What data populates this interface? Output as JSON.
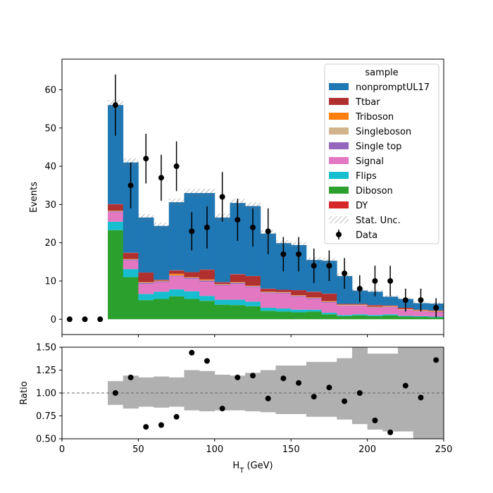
{
  "chart_data": [
    {
      "type": "bar",
      "stacked": true,
      "ylabel": "Events",
      "ylim": [
        -4,
        68
      ],
      "yticks": [
        0,
        10,
        20,
        30,
        40,
        50,
        60
      ],
      "xlim": [
        0,
        250
      ],
      "bin_edges": [
        30,
        40,
        50,
        60,
        70,
        80,
        90,
        100,
        110,
        120,
        130,
        140,
        150,
        160,
        170,
        180,
        190,
        200,
        210,
        220,
        230,
        240,
        250
      ],
      "legend": {
        "title": "sample",
        "placement": "top-right"
      },
      "series": [
        {
          "name": "Diboson",
          "color": "#2ca02c",
          "values": [
            23.3,
            11.0,
            5.0,
            5.3,
            6.0,
            5.3,
            4.8,
            3.8,
            3.7,
            3.4,
            2.2,
            2.0,
            1.8,
            2.0,
            1.3,
            0.8,
            1.0,
            0.8,
            1.0,
            0.7,
            0.6,
            0.5
          ]
        },
        {
          "name": "Flips",
          "color": "#17becf",
          "values": [
            2.2,
            2.1,
            1.6,
            1.9,
            1.8,
            2.0,
            1.3,
            1.3,
            1.4,
            1.2,
            0.8,
            0.8,
            0.7,
            0.5,
            0.4,
            0.3,
            0.3,
            0.3,
            0.3,
            0.2,
            0.2,
            0.2
          ]
        },
        {
          "name": "Signal",
          "color": "#e377c2",
          "values": [
            2.5,
            2.3,
            2.6,
            2.5,
            3.4,
            3.2,
            3.7,
            3.7,
            4.1,
            3.8,
            3.8,
            3.9,
            3.4,
            2.8,
            2.6,
            2.4,
            2.2,
            1.9,
            1.8,
            1.5,
            1.2,
            1.1
          ]
        },
        {
          "name": "Single top",
          "color": "#9467bd",
          "values": [
            0.2,
            0.2,
            0.3,
            0.2,
            0.2,
            0.3,
            0.3,
            0.2,
            0.3,
            0.2,
            0.2,
            0.2,
            0.2,
            0.2,
            0.2,
            0.1,
            0.1,
            0.1,
            0.1,
            0.1,
            0.1,
            0.1
          ]
        },
        {
          "name": "Singleboson",
          "color": "#d2b48c",
          "values": [
            0.1,
            0.1,
            0.1,
            0.1,
            0.1,
            0.1,
            0.1,
            0.1,
            0.1,
            0.1,
            0.1,
            0.1,
            0.1,
            0.1,
            0.1,
            0.1,
            0.1,
            0.1,
            0.1,
            0.1,
            0.1,
            0.1
          ]
        },
        {
          "name": "Triboson",
          "color": "#ff7f0e",
          "values": [
            0.1,
            0.1,
            0.1,
            0.1,
            0.4,
            0.1,
            0.2,
            0.1,
            0.1,
            0.1,
            0.1,
            0.1,
            0.1,
            0.1,
            0.1,
            0.1,
            0.1,
            0.1,
            0.1,
            0.1,
            0.1,
            0.1
          ]
        },
        {
          "name": "Ttbar",
          "color": "#b03030",
          "values": [
            1.6,
            1.5,
            2.4,
            0.1,
            0.8,
            1.2,
            2.5,
            0.4,
            2.0,
            2.4,
            0.7,
            0.5,
            1.2,
            1.4,
            1.9,
            0.1,
            0.1,
            0.3,
            0.1,
            0.2,
            0.1,
            0.1
          ]
        },
        {
          "name": "DY",
          "color": "#d62728",
          "values": [
            0.1,
            0.1,
            0.1,
            0.1,
            0.1,
            0.1,
            0.1,
            0.1,
            0.1,
            0.1,
            0.1,
            0.1,
            0.1,
            0.1,
            0.1,
            0.1,
            0.1,
            0.1,
            0.1,
            0.1,
            0.1,
            0.1
          ]
        },
        {
          "name": "nonpromptUL17",
          "color": "#1f77b4",
          "values": [
            25.9,
            23.6,
            14.4,
            14.1,
            17.8,
            20.7,
            20.0,
            16.9,
            18.6,
            18.3,
            14.4,
            12.2,
            11.8,
            8.3,
            8.6,
            7.3,
            3.5,
            3.5,
            2.3,
            2.3,
            1.7,
            1.8
          ]
        }
      ],
      "stat_unc": {
        "name": "Stat. Unc.",
        "half_width": [
          1.3,
          1.1,
          0.9,
          0.9,
          1.0,
          1.1,
          1.1,
          1.0,
          1.1,
          1.0,
          0.9,
          0.8,
          0.8,
          0.7,
          0.7,
          0.6,
          0.5,
          0.5,
          0.4,
          0.4,
          0.4,
          0.4
        ]
      },
      "data": {
        "name": "Data",
        "x": [
          5,
          15,
          25,
          35,
          45,
          55,
          65,
          75,
          85,
          95,
          105,
          115,
          125,
          135,
          145,
          155,
          165,
          175,
          185,
          195,
          205,
          215,
          225,
          235,
          245
        ],
        "y": [
          0,
          0,
          0,
          56,
          35,
          42,
          37,
          40,
          23,
          24,
          32,
          26,
          24,
          23,
          17,
          17,
          14,
          14,
          12,
          8,
          10,
          10,
          5,
          5,
          3
        ],
        "err": [
          0,
          0,
          0,
          8,
          6,
          6.5,
          6,
          6.5,
          5,
          5.5,
          6.5,
          5.5,
          5,
          6,
          4.5,
          4.5,
          4.5,
          4,
          4,
          3.5,
          4,
          4,
          3,
          3,
          2.5
        ]
      },
      "legend_order": [
        "nonpromptUL17",
        "Ttbar",
        "Triboson",
        "Singleboson",
        "Single top",
        "Signal",
        "Flips",
        "Diboson",
        "DY",
        "Stat. Unc.",
        "Data"
      ]
    },
    {
      "type": "scatter",
      "xlabel": "H_T (GeV)",
      "ylabel": "Ratio",
      "xlim": [
        0,
        250
      ],
      "ylim": [
        0.5,
        1.5
      ],
      "xticks": [
        0,
        50,
        100,
        150,
        200,
        250
      ],
      "yticks": [
        0.5,
        0.75,
        1.0,
        1.25,
        1.5
      ],
      "ytick_labels": [
        "0.50",
        "0.75",
        "1.00",
        "1.25",
        "1.50"
      ],
      "reference_line": 1.0,
      "unc_band": {
        "bin_edges": [
          30,
          40,
          50,
          60,
          70,
          80,
          90,
          100,
          110,
          120,
          130,
          140,
          150,
          160,
          170,
          180,
          190,
          200,
          210,
          220,
          230,
          240,
          250
        ],
        "lo": [
          0.87,
          0.83,
          0.85,
          0.84,
          0.85,
          0.81,
          0.8,
          0.81,
          0.81,
          0.8,
          0.79,
          0.77,
          0.77,
          0.74,
          0.74,
          0.71,
          0.66,
          0.6,
          0.58,
          0.58,
          0.45,
          0.45
        ],
        "hi": [
          1.13,
          1.19,
          1.17,
          1.18,
          1.17,
          1.25,
          1.24,
          1.2,
          1.19,
          1.22,
          1.25,
          1.3,
          1.3,
          1.34,
          1.34,
          1.38,
          1.55,
          1.43,
          1.43,
          1.55,
          1.55,
          1.55
        ]
      },
      "points": {
        "x": [
          35,
          45,
          55,
          65,
          75,
          85,
          95,
          105,
          115,
          125,
          135,
          145,
          155,
          165,
          175,
          185,
          195,
          205,
          215,
          225,
          235,
          245
        ],
        "y": [
          1.0,
          1.17,
          0.63,
          0.65,
          0.74,
          1.44,
          1.35,
          0.83,
          1.17,
          1.19,
          0.94,
          1.16,
          1.11,
          0.96,
          1.06,
          0.91,
          1.0,
          0.7,
          0.57,
          1.08,
          0.95,
          1.36
        ]
      }
    }
  ]
}
